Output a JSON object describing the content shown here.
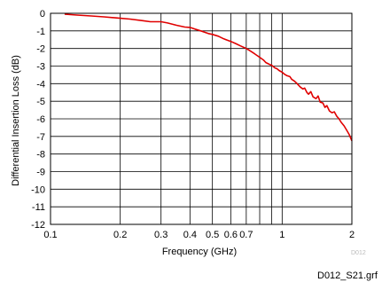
{
  "chart_data": {
    "type": "line",
    "xlabel": "Frequency (GHz)",
    "ylabel": "Differential Insertion Loss (dB)",
    "x_scale": "log",
    "xlim": [
      0.1,
      2
    ],
    "ylim": [
      -12,
      0
    ],
    "grid": true,
    "x_ticks": [
      {
        "value": 0.1,
        "label": "0.1"
      },
      {
        "value": 0.2,
        "label": "0.2"
      },
      {
        "value": 0.3,
        "label": "0.3"
      },
      {
        "value": 0.4,
        "label": "0.4"
      },
      {
        "value": 0.5,
        "label": "0.5"
      },
      {
        "value": 0.6,
        "label": "0.6"
      },
      {
        "value": 0.7,
        "label": "0.7"
      },
      {
        "value": 1,
        "label": "1"
      },
      {
        "value": 2,
        "label": "2"
      }
    ],
    "x_grid": [
      0.2,
      0.3,
      0.4,
      0.5,
      0.6,
      0.7,
      0.8,
      0.9,
      1
    ],
    "y_ticks": [
      0,
      -1,
      -2,
      -3,
      -4,
      -5,
      -6,
      -7,
      -8,
      -9,
      -10,
      -11,
      -12
    ],
    "series": [
      {
        "color": "#e00000",
        "x": [
          0.115,
          0.13,
          0.15,
          0.17,
          0.2,
          0.22,
          0.25,
          0.27,
          0.3,
          0.32,
          0.35,
          0.38,
          0.4,
          0.42,
          0.45,
          0.48,
          0.5,
          0.53,
          0.56,
          0.6,
          0.63,
          0.66,
          0.7,
          0.73,
          0.76,
          0.8,
          0.83,
          0.85,
          0.88,
          0.9,
          0.93,
          0.95,
          0.97,
          1.0,
          1.02,
          1.05,
          1.08,
          1.1,
          1.13,
          1.15,
          1.18,
          1.2,
          1.23,
          1.25,
          1.28,
          1.3,
          1.33,
          1.36,
          1.4,
          1.43,
          1.46,
          1.5,
          1.53,
          1.56,
          1.6,
          1.64,
          1.68,
          1.72,
          1.76,
          1.8,
          1.85,
          1.9,
          1.95,
          2.0
        ],
        "y": [
          -0.05,
          -0.1,
          -0.15,
          -0.2,
          -0.28,
          -0.33,
          -0.42,
          -0.48,
          -0.48,
          -0.55,
          -0.68,
          -0.78,
          -0.8,
          -0.9,
          -1.02,
          -1.15,
          -1.2,
          -1.3,
          -1.45,
          -1.6,
          -1.72,
          -1.85,
          -2.0,
          -2.15,
          -2.3,
          -2.5,
          -2.65,
          -2.8,
          -2.9,
          -2.95,
          -3.1,
          -3.15,
          -3.25,
          -3.35,
          -3.45,
          -3.55,
          -3.6,
          -3.75,
          -3.85,
          -3.95,
          -4.1,
          -4.2,
          -4.3,
          -4.25,
          -4.5,
          -4.6,
          -4.45,
          -4.75,
          -4.85,
          -4.7,
          -5.05,
          -5.1,
          -5.35,
          -5.25,
          -5.55,
          -5.65,
          -5.6,
          -5.85,
          -6.0,
          -6.2,
          -6.4,
          -6.65,
          -6.9,
          -7.25
        ]
      }
    ]
  },
  "footer": {
    "watermark": "D012",
    "file_name": "D012_S21.grf"
  }
}
